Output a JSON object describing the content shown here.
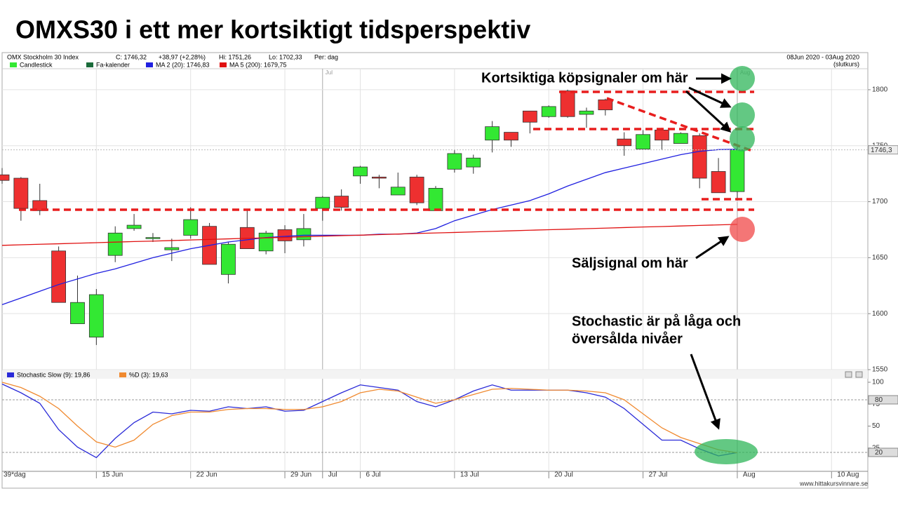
{
  "title": "OMXS30 i ett mer kortsiktigt tidsperspektiv",
  "chart_data": [
    {
      "type": "candlestick",
      "header": {
        "name": "OMX Stockholm 30 Index",
        "close": "C: 1746,32",
        "change": "+38,97 (+2,28%)",
        "high": "Hi: 1751,26",
        "low": "Lo: 1702,33",
        "period": "Per: dag",
        "range": "08Jun 2020 - 03Aug 2020",
        "mode": "(slutkurs)",
        "last_price": "1746,3"
      },
      "legend": [
        "Candlestick",
        "Fa-kalender"
      ],
      "categories": [
        "39*dag",
        null,
        null,
        null,
        null,
        "15 Jun",
        null,
        null,
        null,
        null,
        "22 Jun",
        null,
        null,
        null,
        null,
        "29 Jun",
        null,
        "Jul",
        null,
        "6 Jul",
        null,
        null,
        null,
        null,
        "13 Jul",
        null,
        null,
        null,
        null,
        "20 Jul",
        null,
        null,
        null,
        null,
        "27 Jul",
        null,
        null,
        null,
        null,
        "Aug",
        null,
        null,
        null,
        null,
        "10 Aug"
      ],
      "open": [
        1724,
        1721,
        1701,
        1656,
        1591,
        1579,
        1652,
        1676,
        1667,
        1657,
        1670,
        1678,
        1635,
        1677,
        1656,
        1675,
        1666,
        1694,
        1705,
        1723,
        1722,
        1706,
        1722,
        1692,
        1729,
        1731,
        1755,
        1762,
        1781,
        1776,
        1799,
        1778,
        1791,
        1756,
        1747,
        1764,
        1752,
        1759,
        1727,
        1709,
        null,
        null,
        null,
        null,
        null
      ],
      "high": [
        1730,
        1722,
        1716,
        1660,
        1634,
        1622,
        1678,
        1689,
        1672,
        1667,
        1695,
        1681,
        1664,
        1692,
        1674,
        1679,
        1689,
        1705,
        1711,
        1732,
        1724,
        1726,
        1724,
        1714,
        1746,
        1742,
        1772,
        1762,
        1781,
        1786,
        1800,
        1784,
        1792,
        1762,
        1764,
        1766,
        1762,
        1761,
        1739,
        1751.26,
        null,
        null,
        null,
        null,
        null
      ],
      "low": [
        1716,
        1683,
        1688,
        1610,
        1591,
        1572,
        1646,
        1674,
        1664,
        1647,
        1667,
        1644,
        1627,
        1658,
        1653,
        1654,
        1660,
        1683,
        1692,
        1716,
        1712,
        1706,
        1697,
        1692,
        1726,
        1725,
        1744,
        1749,
        1761,
        1775,
        1775,
        1766,
        1777,
        1741,
        1747,
        1746,
        1752,
        1712,
        1708,
        1702.33,
        null,
        null,
        null,
        null,
        null
      ],
      "close": [
        1719,
        1694,
        1692,
        1610,
        1610,
        1617,
        1672,
        1679,
        1668,
        1659,
        1684,
        1644,
        1662,
        1658,
        1672,
        1665,
        1676,
        1704,
        1695,
        1731,
        1721,
        1713,
        1699,
        1712,
        1743,
        1739,
        1767,
        1755,
        1771,
        1785,
        1776,
        1781,
        1782,
        1750,
        1760,
        1755,
        1761,
        1721,
        1708,
        1746.32,
        null,
        null,
        null,
        null,
        null
      ],
      "up_color": "#33e833",
      "down_color": "#ee3030",
      "legend_colors": [
        "#33e833",
        "#1a6b3a"
      ],
      "series": [
        {
          "name": "MA 2 (20): 1746,83",
          "color": "#2020e0",
          "values": [
            1608,
            1614,
            1620,
            1626,
            1631,
            1636,
            1640,
            1645,
            1650,
            1654,
            1658,
            1661,
            1664,
            1666,
            1668,
            1669,
            1670,
            1670,
            1670,
            1670,
            1671,
            1671,
            1672,
            1676,
            1683,
            1688,
            1693,
            1697,
            1701,
            1707,
            1714,
            1720,
            1726,
            1730,
            1734,
            1738,
            1742,
            1745,
            1746.5,
            1746.83,
            null,
            null,
            null,
            null,
            null
          ]
        },
        {
          "name": "MA 5 (200): 1679,75",
          "color": "#e01010",
          "values": [
            1661,
            1661.5,
            1662,
            1662.4,
            1662.9,
            1663.4,
            1663.9,
            1664.4,
            1664.8,
            1665.3,
            1665.8,
            1666.3,
            1666.8,
            1667.3,
            1667.7,
            1668.2,
            1668.7,
            1669.2,
            1669.7,
            1670.1,
            1670.6,
            1671.1,
            1671.6,
            1672.1,
            1672.5,
            1673,
            1673.5,
            1674,
            1674.5,
            1675,
            1675.4,
            1675.9,
            1676.4,
            1676.9,
            1677.4,
            1677.8,
            1678.3,
            1678.8,
            1679.3,
            1679.75,
            null,
            null,
            null,
            null,
            null
          ]
        }
      ],
      "ylim": [
        1550,
        1817.5
      ],
      "yticks": [
        1550,
        1600,
        1650,
        1700,
        1750,
        1800
      ],
      "grid": true
    },
    {
      "type": "line",
      "series": [
        {
          "name": "Stochastic Slow (9): 19,86",
          "color": "#2a2ad8",
          "values": [
            98,
            88,
            76,
            46,
            26,
            14,
            36,
            54,
            66,
            64,
            68,
            67,
            72,
            70,
            72,
            67,
            68,
            78,
            88,
            97,
            94,
            91,
            78,
            72,
            80,
            90,
            97,
            91,
            91,
            91,
            91,
            88,
            83,
            70,
            52,
            34,
            34,
            24,
            16,
            19.86
          ]
        },
        {
          "name": "%D (3): 19,63",
          "color": "#f08a30",
          "values": [
            100,
            94,
            84,
            70,
            50,
            32,
            26,
            34,
            52,
            62,
            66,
            66,
            69,
            70,
            70,
            69,
            69,
            72,
            78,
            88,
            92,
            90,
            83,
            76,
            80,
            86,
            92,
            93,
            92,
            91,
            91,
            90,
            88,
            80,
            64,
            48,
            37,
            30,
            23,
            19.63
          ]
        }
      ],
      "ylim": [
        0,
        104
      ],
      "yticks": [
        25,
        50,
        75,
        100
      ],
      "levels": [
        80,
        20
      ],
      "grid": true
    }
  ],
  "annotations": {
    "buy": "Kortsiktiga köpsignaler om här",
    "sell": "Säljsignal om här",
    "stochastic": [
      "Stochastic är på låga och",
      "översålda nivåer"
    ]
  },
  "footer": "www.hittakursvinnare.se"
}
